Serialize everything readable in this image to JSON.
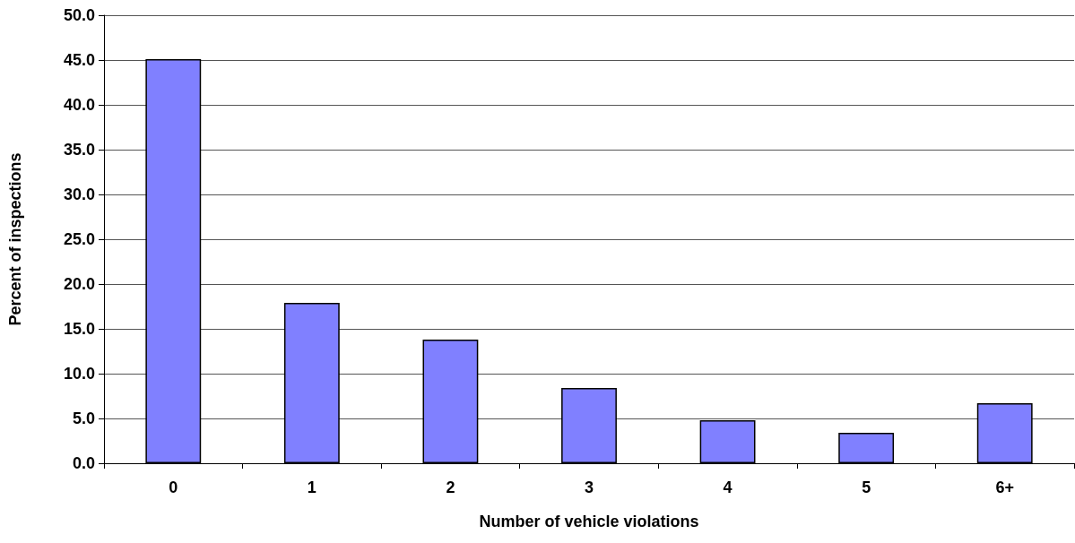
{
  "chart_data": {
    "type": "bar",
    "xlabel": "Number of vehicle violations",
    "ylabel": "Percent of inspections",
    "categories": [
      "0",
      "1",
      "2",
      "3",
      "4",
      "5",
      "6+"
    ],
    "values": [
      45.1,
      17.9,
      13.8,
      8.4,
      4.8,
      3.4,
      6.7
    ],
    "color": "#8080ff",
    "ylim": [
      0,
      50
    ],
    "yticks": [
      {
        "value": 0,
        "label": "0.0"
      },
      {
        "value": 5,
        "label": "5.0"
      },
      {
        "value": 10,
        "label": "10.0"
      },
      {
        "value": 15,
        "label": "15.0"
      },
      {
        "value": 20,
        "label": "20.0"
      },
      {
        "value": 25,
        "label": "25.0"
      },
      {
        "value": 30,
        "label": "30.0"
      },
      {
        "value": 35,
        "label": "35.0"
      },
      {
        "value": 40,
        "label": "40.0"
      },
      {
        "value": 45,
        "label": "45.0"
      },
      {
        "value": 50,
        "label": "50.0"
      }
    ],
    "grid": "y"
  }
}
